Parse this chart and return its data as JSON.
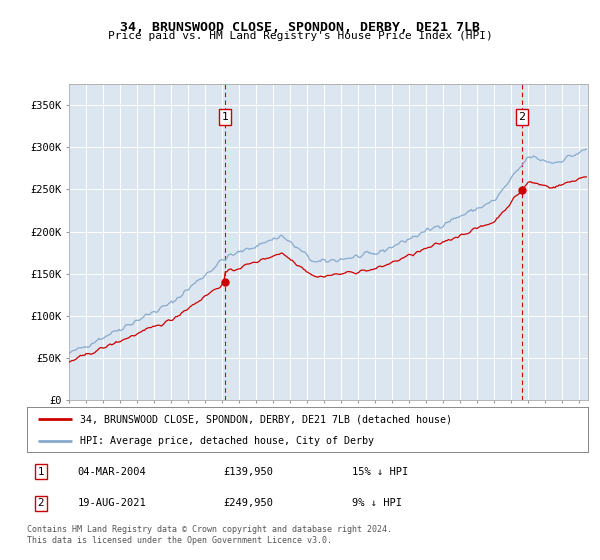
{
  "title_line1": "34, BRUNSWOOD CLOSE, SPONDON, DERBY, DE21 7LB",
  "title_line2": "Price paid vs. HM Land Registry's House Price Index (HPI)",
  "ylabel_ticks": [
    "£0",
    "£50K",
    "£100K",
    "£150K",
    "£200K",
    "£250K",
    "£300K",
    "£350K"
  ],
  "ytick_values": [
    0,
    50000,
    100000,
    150000,
    200000,
    250000,
    300000,
    350000
  ],
  "ylim": [
    0,
    375000
  ],
  "xlim_start": 1995.0,
  "xlim_end": 2025.5,
  "ann1_x": 2004.17,
  "ann1_y": 139950,
  "ann2_x": 2021.63,
  "ann2_y": 249950,
  "sale1_date": "04-MAR-2004",
  "sale1_price": "£139,950",
  "sale1_note": "15% ↓ HPI",
  "sale2_date": "19-AUG-2021",
  "sale2_price": "£249,950",
  "sale2_note": "9% ↓ HPI",
  "legend_label1": "34, BRUNSWOOD CLOSE, SPONDON, DERBY, DE21 7LB (detached house)",
  "legend_label2": "HPI: Average price, detached house, City of Derby",
  "footer": "Contains HM Land Registry data © Crown copyright and database right 2024.\nThis data is licensed under the Open Government Licence v3.0.",
  "line_color_sale": "#cc0000",
  "line_color_hpi": "#88aacc",
  "plot_bg": "#dce6f1",
  "grid_color": "#ffffff",
  "dashed_color": "#cc0000"
}
